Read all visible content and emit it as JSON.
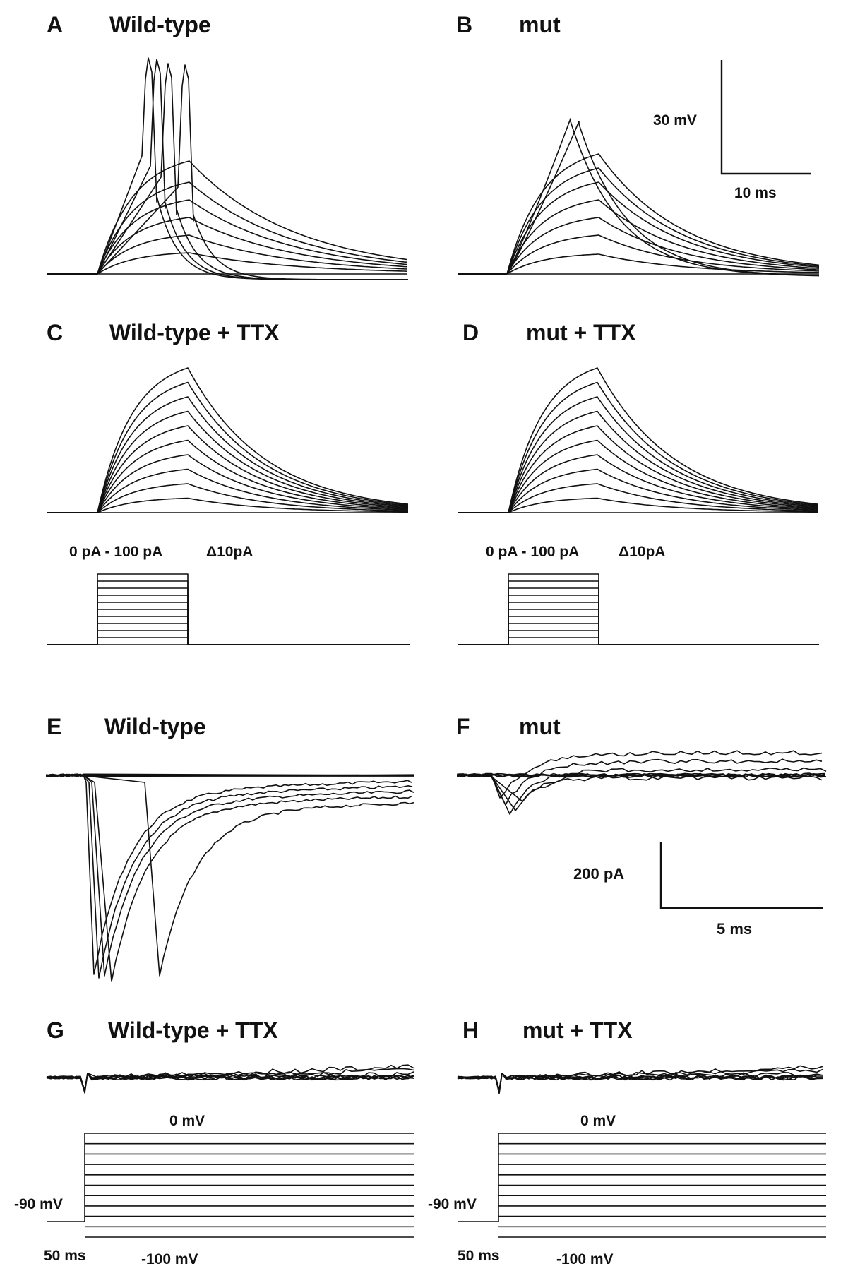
{
  "panels": [
    {
      "letter": "A",
      "title": "Wild-type"
    },
    {
      "letter": "B",
      "title": "mut"
    },
    {
      "letter": "C",
      "title": "Wild-type + TTX"
    },
    {
      "letter": "D",
      "title": "mut + TTX"
    },
    {
      "letter": "E",
      "title": "Wild-type"
    },
    {
      "letter": "F",
      "title": "mut"
    },
    {
      "letter": "G",
      "title": "Wild-type + TTX"
    },
    {
      "letter": "H",
      "title": "mut + TTX"
    }
  ],
  "scale_bars": {
    "voltage": {
      "y_label": "30 mV",
      "x_label": "10 ms"
    },
    "current": {
      "y_label": "200 pA",
      "x_label": "5 ms"
    }
  },
  "protocols": {
    "current_clamp": {
      "range_label": "0 pA - 100 pA",
      "step_label": "Δ10pA"
    },
    "voltage_clamp": {
      "top_label": "0 mV",
      "hold_label": "-90 mV",
      "bottom_label": "-100 mV",
      "pre_label": "50 ms"
    }
  },
  "chart_data": [
    {
      "type": "line",
      "panel": "A",
      "title": "Wild-type",
      "step_count": 11,
      "spike_count": 4,
      "units": "mV"
    },
    {
      "type": "line",
      "panel": "B",
      "title": "mut",
      "step_count": 11,
      "spike_count": 2,
      "units": "mV"
    },
    {
      "type": "line",
      "panel": "C",
      "title": "Wild-type + TTX",
      "step_count": 11,
      "spike_count": 0,
      "units": "mV"
    },
    {
      "type": "line",
      "panel": "D",
      "title": "mut + TTX",
      "step_count": 11,
      "spike_count": 0,
      "units": "mV"
    },
    {
      "type": "line",
      "panel": "E",
      "title": "Wild-type",
      "sweep_count": 11,
      "units": "pA"
    },
    {
      "type": "line",
      "panel": "F",
      "title": "mut",
      "sweep_count": 11,
      "units": "pA"
    },
    {
      "type": "line",
      "panel": "G",
      "title": "Wild-type + TTX",
      "sweep_count": 11,
      "units": "pA"
    },
    {
      "type": "line",
      "panel": "H",
      "title": "mut + TTX",
      "sweep_count": 11,
      "units": "pA"
    }
  ]
}
